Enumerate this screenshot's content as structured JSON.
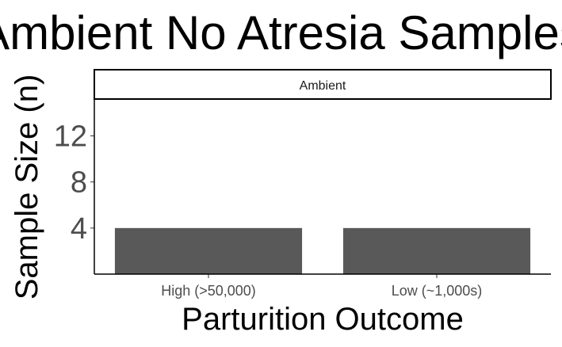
{
  "chart_data": {
    "type": "bar",
    "title": "Ambient No Atresia Samples",
    "facet_label": "Ambient",
    "xlabel": "Parturition Outcome",
    "ylabel": "Sample Size (n)",
    "categories": [
      "High (>50,000)",
      "Low (~1,000s)"
    ],
    "values": [
      4,
      4
    ],
    "yticks": [
      4,
      8,
      12
    ],
    "ylim": [
      0,
      15.2
    ],
    "grid": false,
    "bar_color": "#595959"
  }
}
